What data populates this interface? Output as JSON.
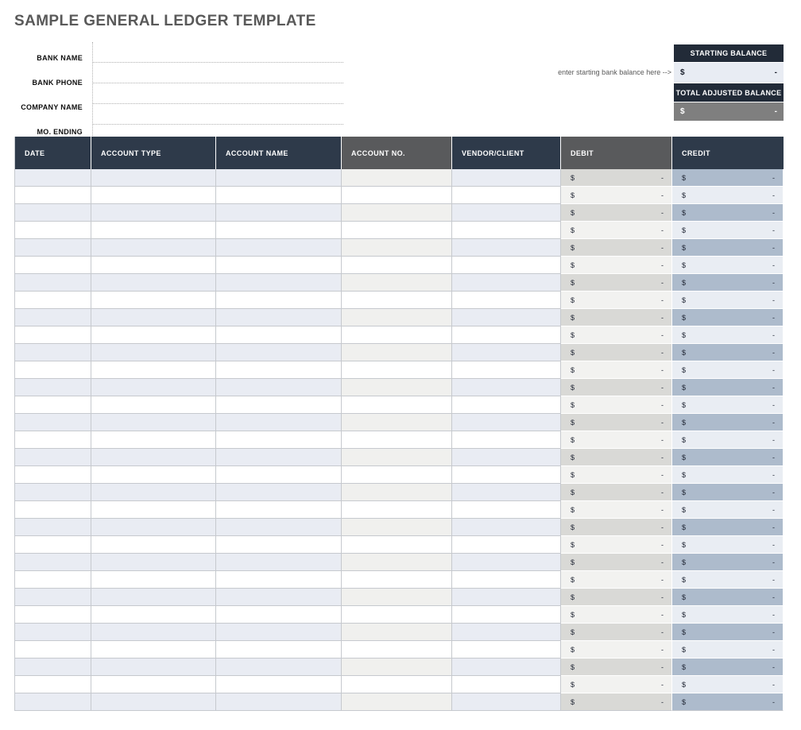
{
  "page": {
    "title": "SAMPLE GENERAL LEDGER TEMPLATE"
  },
  "bank_form": {
    "fields": [
      {
        "key": "bank-name",
        "label": "BANK NAME",
        "value": ""
      },
      {
        "key": "bank-phone",
        "label": "BANK PHONE",
        "value": ""
      },
      {
        "key": "company-name",
        "label": "COMPANY NAME",
        "value": ""
      },
      {
        "key": "mo-ending",
        "label": "MO. ENDING",
        "value": ""
      }
    ]
  },
  "balance_panel": {
    "hint": "enter starting bank balance here -->",
    "starting_balance": {
      "label": "STARTING BALANCE",
      "currency": "$",
      "amount": "-"
    },
    "total_adjusted_balance": {
      "label": "TOTAL ADJUSTED BALANCE",
      "currency": "$",
      "amount": "-"
    }
  },
  "ledger_table": {
    "columns": [
      {
        "key": "date",
        "label": "DATE",
        "header_style": "navy",
        "cell_style": "blue",
        "money": false
      },
      {
        "key": "account-type",
        "label": "ACCOUNT TYPE",
        "header_style": "navy",
        "cell_style": "blue",
        "money": false
      },
      {
        "key": "account-name",
        "label": "ACCOUNT NAME",
        "header_style": "navy",
        "cell_style": "blue",
        "money": false
      },
      {
        "key": "account-no",
        "label": "ACCOUNT NO.",
        "header_style": "gray",
        "cell_style": "graylight",
        "money": false
      },
      {
        "key": "vendor-client",
        "label": "VENDOR/CLIENT",
        "header_style": "navy",
        "cell_style": "blue",
        "money": false
      },
      {
        "key": "debit",
        "label": "DEBIT",
        "header_style": "gray",
        "cell_style": "debit",
        "money": true
      },
      {
        "key": "credit",
        "label": "CREDIT",
        "header_style": "navy",
        "cell_style": "credit",
        "money": true
      }
    ],
    "row_count": 31,
    "money_cell": {
      "currency": "$",
      "amount": "-"
    }
  },
  "colors": {
    "title_text": "#595959",
    "header_navy": "#2e3a4a",
    "header_gray": "#595a5c",
    "panel_dark": "#222b38",
    "stripe_blue": "#e9ecf3",
    "stripe_gray": "#f0f0ee",
    "debit_odd": "#d9d9d6",
    "debit_even": "#f2f2f0",
    "credit_odd": "#adbbcc",
    "credit_even": "#e9edf3",
    "starting_value_bg": "#e8ecf3",
    "total_value_bg": "#7f7f7f",
    "grid_border": "#c6c9ce"
  }
}
